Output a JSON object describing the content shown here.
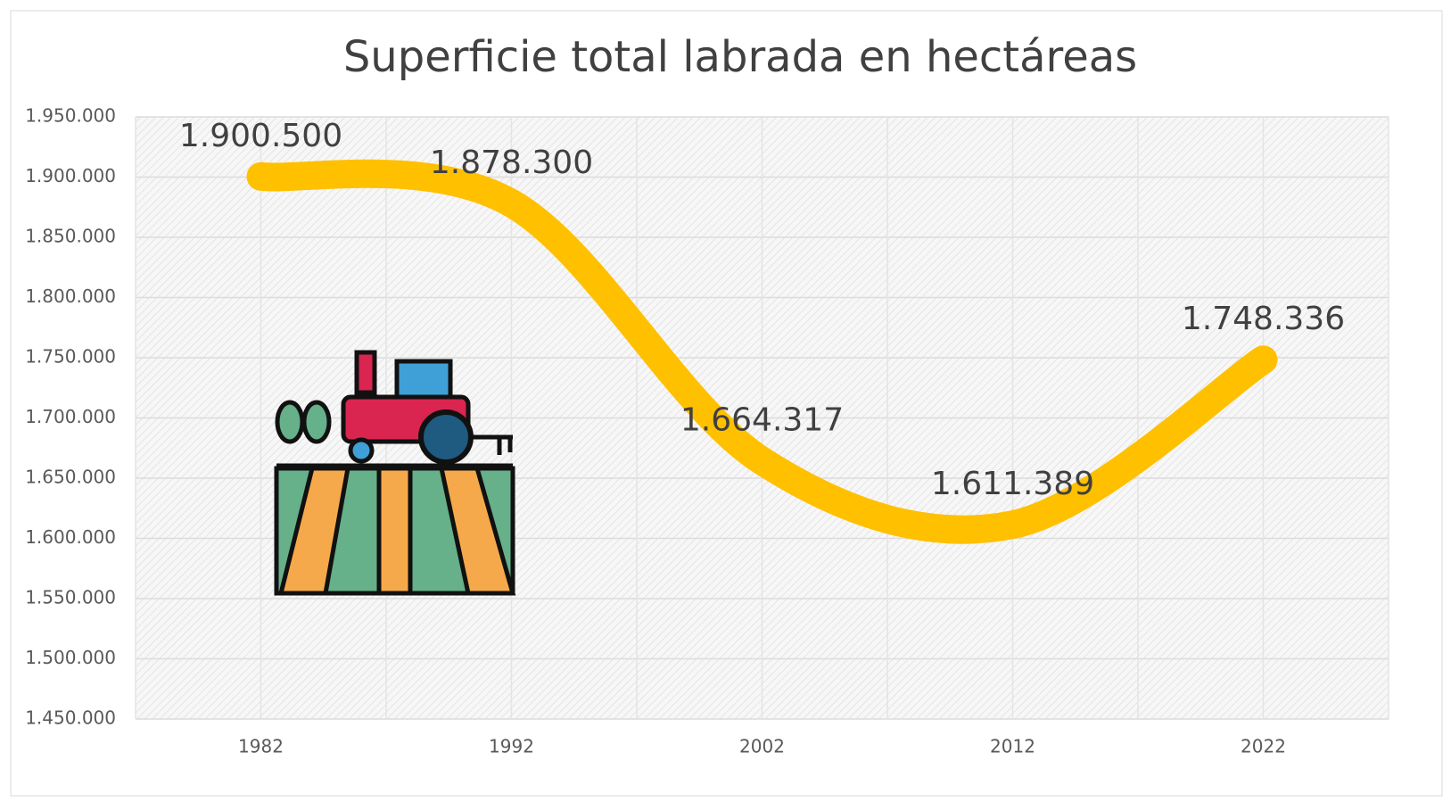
{
  "chart_data": {
    "type": "line",
    "title": "Superficie total labrada en hectáreas",
    "categories": [
      "1982",
      "1992",
      "2002",
      "2012",
      "2022"
    ],
    "values": [
      1900500,
      1878300,
      1664317,
      1611389,
      1748336
    ],
    "value_labels": [
      "1.900.500",
      "1.878.300",
      "1.664.317",
      "1.611.389",
      "1.748.336"
    ],
    "color": "#ffc000",
    "smooth": true,
    "ylim": [
      1450000,
      1950000
    ],
    "yticks": [
      {
        "value": 1450000,
        "label": "1.450.000"
      },
      {
        "value": 1500000,
        "label": "1.500.000"
      },
      {
        "value": 1550000,
        "label": "1.550.000"
      },
      {
        "value": 1600000,
        "label": "1.600.000"
      },
      {
        "value": 1650000,
        "label": "1.650.000"
      },
      {
        "value": 1700000,
        "label": "1.700.000"
      },
      {
        "value": 1750000,
        "label": "1.750.000"
      },
      {
        "value": 1800000,
        "label": "1.800.000"
      },
      {
        "value": 1850000,
        "label": "1.850.000"
      },
      {
        "value": 1900000,
        "label": "1.900.000"
      },
      {
        "value": 1950000,
        "label": "1.950.000"
      }
    ],
    "grid": true
  }
}
